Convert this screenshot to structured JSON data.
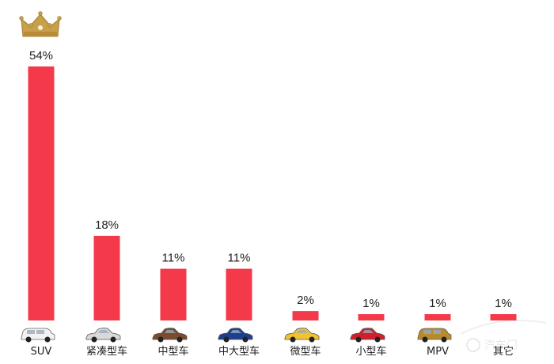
{
  "chart_data": {
    "type": "bar",
    "categories": [
      "SUV",
      "紧凑型车",
      "中型车",
      "中大型车",
      "微型车",
      "小型车",
      "MPV",
      "其它"
    ],
    "values": [
      54,
      18,
      11,
      11,
      2,
      1,
      1,
      1
    ],
    "value_labels": [
      "54%",
      "18%",
      "11%",
      "11%",
      "2%",
      "1%",
      "1%",
      "1%"
    ],
    "ylim": [
      0,
      60
    ],
    "grid": false,
    "legend": "none",
    "title": "",
    "xlabel": "",
    "ylabel": ""
  },
  "decorations": {
    "crown_icon": "crown-icon",
    "car_icons": [
      "suv-white-icon",
      "sedan-silver-icon",
      "sedan-brown-icon",
      "sedan-blue-icon",
      "hatchback-yellow-icon",
      "hatchback-red-icon",
      "mpv-gold-icon",
      "none"
    ],
    "car_colors": [
      "#f2f2f2",
      "#d9d9d9",
      "#7a4b2e",
      "#1c3f8f",
      "#f2c230",
      "#d11f2a",
      "#b88a2a",
      "none"
    ],
    "watermark_text": "汽车门"
  },
  "colors": {
    "bar": "#f43a4a",
    "crown": "#c9a04a",
    "text": "#222222"
  }
}
